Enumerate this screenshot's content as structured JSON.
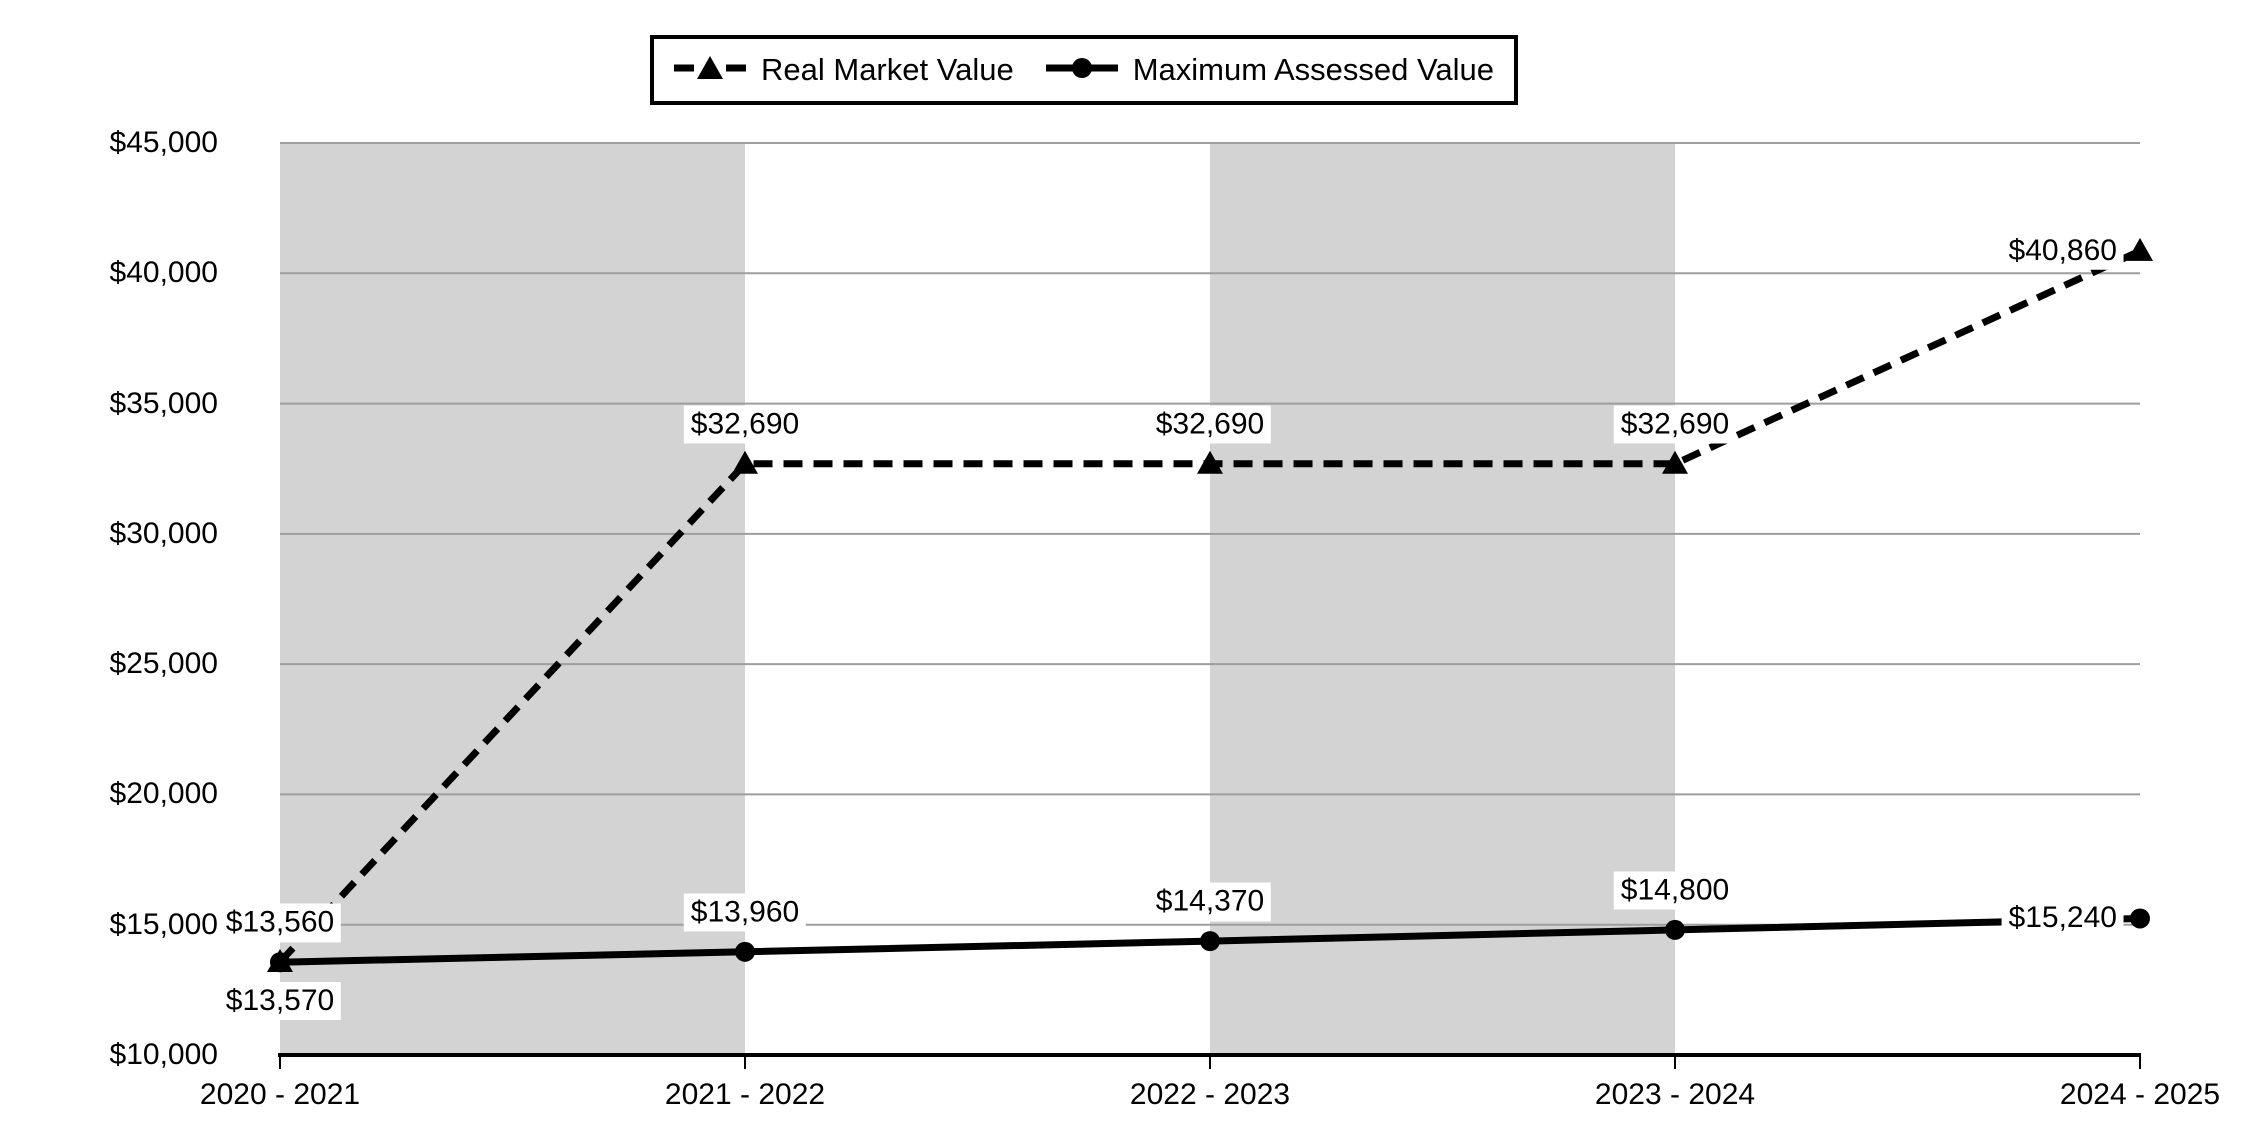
{
  "legend": {
    "items": [
      {
        "label": "Real Market Value",
        "marker": "triangle",
        "line_style": "dashed"
      },
      {
        "label": "Maximum Assessed Value",
        "marker": "circle",
        "line_style": "solid"
      }
    ]
  },
  "chart_data": {
    "type": "line",
    "categories": [
      "2020 - 2021",
      "2021 - 2022",
      "2022 - 2023",
      "2023 - 2024",
      "2024 - 2025"
    ],
    "series": [
      {
        "name": "Real Market Value",
        "line_style": "dashed",
        "marker": "triangle",
        "values": [
          13570,
          32690,
          32690,
          32690,
          40860
        ],
        "labels": [
          "$13,570",
          "$32,690",
          "$32,690",
          "$32,690",
          "$40,860"
        ],
        "label_positions": [
          "below",
          "above",
          "above",
          "above",
          "left"
        ]
      },
      {
        "name": "Maximum Assessed Value",
        "line_style": "solid",
        "marker": "circle",
        "values": [
          13560,
          13960,
          14370,
          14800,
          15240
        ],
        "labels": [
          "$13,560",
          "$13,960",
          "$14,370",
          "$14,800",
          "$15,240"
        ],
        "label_positions": [
          "above",
          "above",
          "above",
          "above",
          "left"
        ]
      }
    ],
    "title": "",
    "xlabel": "",
    "ylabel": "",
    "ylim": [
      10000,
      45000
    ],
    "ytick_step": 5000,
    "ytick_labels": [
      "$10,000",
      "$15,000",
      "$20,000",
      "$25,000",
      "$30,000",
      "$35,000",
      "$40,000",
      "$45,000"
    ],
    "grid": true,
    "legend_position": "top-center",
    "shaded_column_ranges": [
      [
        0,
        1
      ],
      [
        2,
        3
      ]
    ],
    "colors": {
      "series_line": "#000000",
      "shaded_band": "#d3d3d3",
      "gridline": "#9e9e9e",
      "axis_line": "#000000",
      "background": "#ffffff",
      "data_label_bg": "#ffffff",
      "text": "#000000"
    }
  }
}
